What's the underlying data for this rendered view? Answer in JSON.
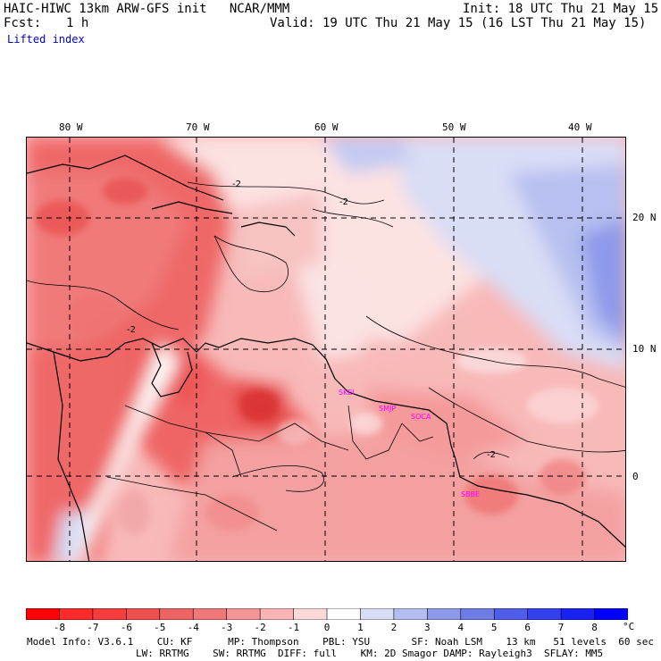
{
  "header": {
    "model_title": "HAIC-HIWC 13km ARW-GFS init   NCAR/MMM",
    "init": "Init: 18 UTC Thu 21 May 15",
    "fcst_label": "Fcst:",
    "fcst_value": "1 h",
    "valid": "Valid: 19 UTC Thu 21 May 15 (16 LST Thu 21 May 15)",
    "field": "Lifted index"
  },
  "map": {
    "lon_labels": [
      "80 W",
      "70 W",
      "60 W",
      "50 W",
      "40 W"
    ],
    "lat_labels": [
      "20 N",
      "10 N",
      "0"
    ],
    "contour_labels": [
      "-2",
      "-2",
      "-2",
      "-2"
    ],
    "stations": [
      "SKEI",
      "SMJP",
      "SOCA",
      "SBBE"
    ]
  },
  "colorbar": {
    "labels": [
      "-8",
      "-7",
      "-6",
      "-5",
      "-4",
      "-3",
      "-2",
      "-1",
      "0",
      "1",
      "2",
      "3",
      "4",
      "5",
      "6",
      "7",
      "8"
    ],
    "unit": "°C",
    "colors": [
      "#ff0000",
      "#ff2a2a",
      "#f63d3d",
      "#ee5050",
      "#ec6464",
      "#f07878",
      "#f59595",
      "#f9b4b4",
      "#fcd9d9",
      "#ffffff",
      "#d8dcf5",
      "#b4bdf0",
      "#8d9aea",
      "#6e7ce6",
      "#4f5ee8",
      "#3340ee",
      "#1a22f3",
      "#0000ff"
    ]
  },
  "model_info": {
    "line1": "Model Info: V3.6.1    CU: KF      MP: Thompson    PBL: YSU       SF: Noah LSM    13 km   51 levels  60 sec",
    "line2": "LW: RRTMG    SW: RRTMG  DIFF: full    KM: 2D Smagor DAMP: Rayleigh3  SFLAY: MM5"
  }
}
